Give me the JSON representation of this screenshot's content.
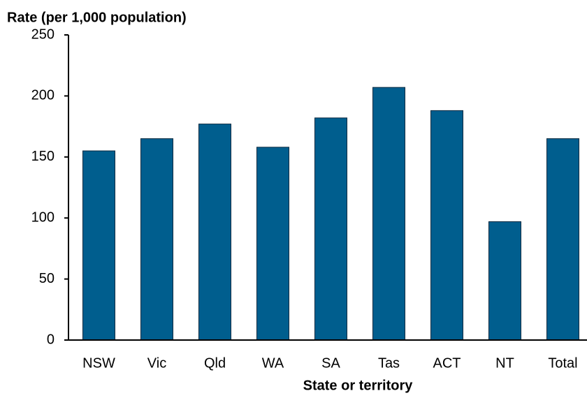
{
  "chart_data": {
    "type": "bar",
    "y_label": "Rate (per 1,000 population)",
    "x_label": "State or territory",
    "categories": [
      "NSW",
      "Vic",
      "Qld",
      "WA",
      "SA",
      "Tas",
      "ACT",
      "NT",
      "Total"
    ],
    "values": [
      155,
      165,
      177,
      158,
      182,
      207,
      188,
      97,
      165
    ],
    "color": "#005e8e",
    "ylim": [
      0,
      250
    ],
    "yticks": [
      0,
      50,
      100,
      150,
      200,
      250
    ],
    "grid": false
  }
}
